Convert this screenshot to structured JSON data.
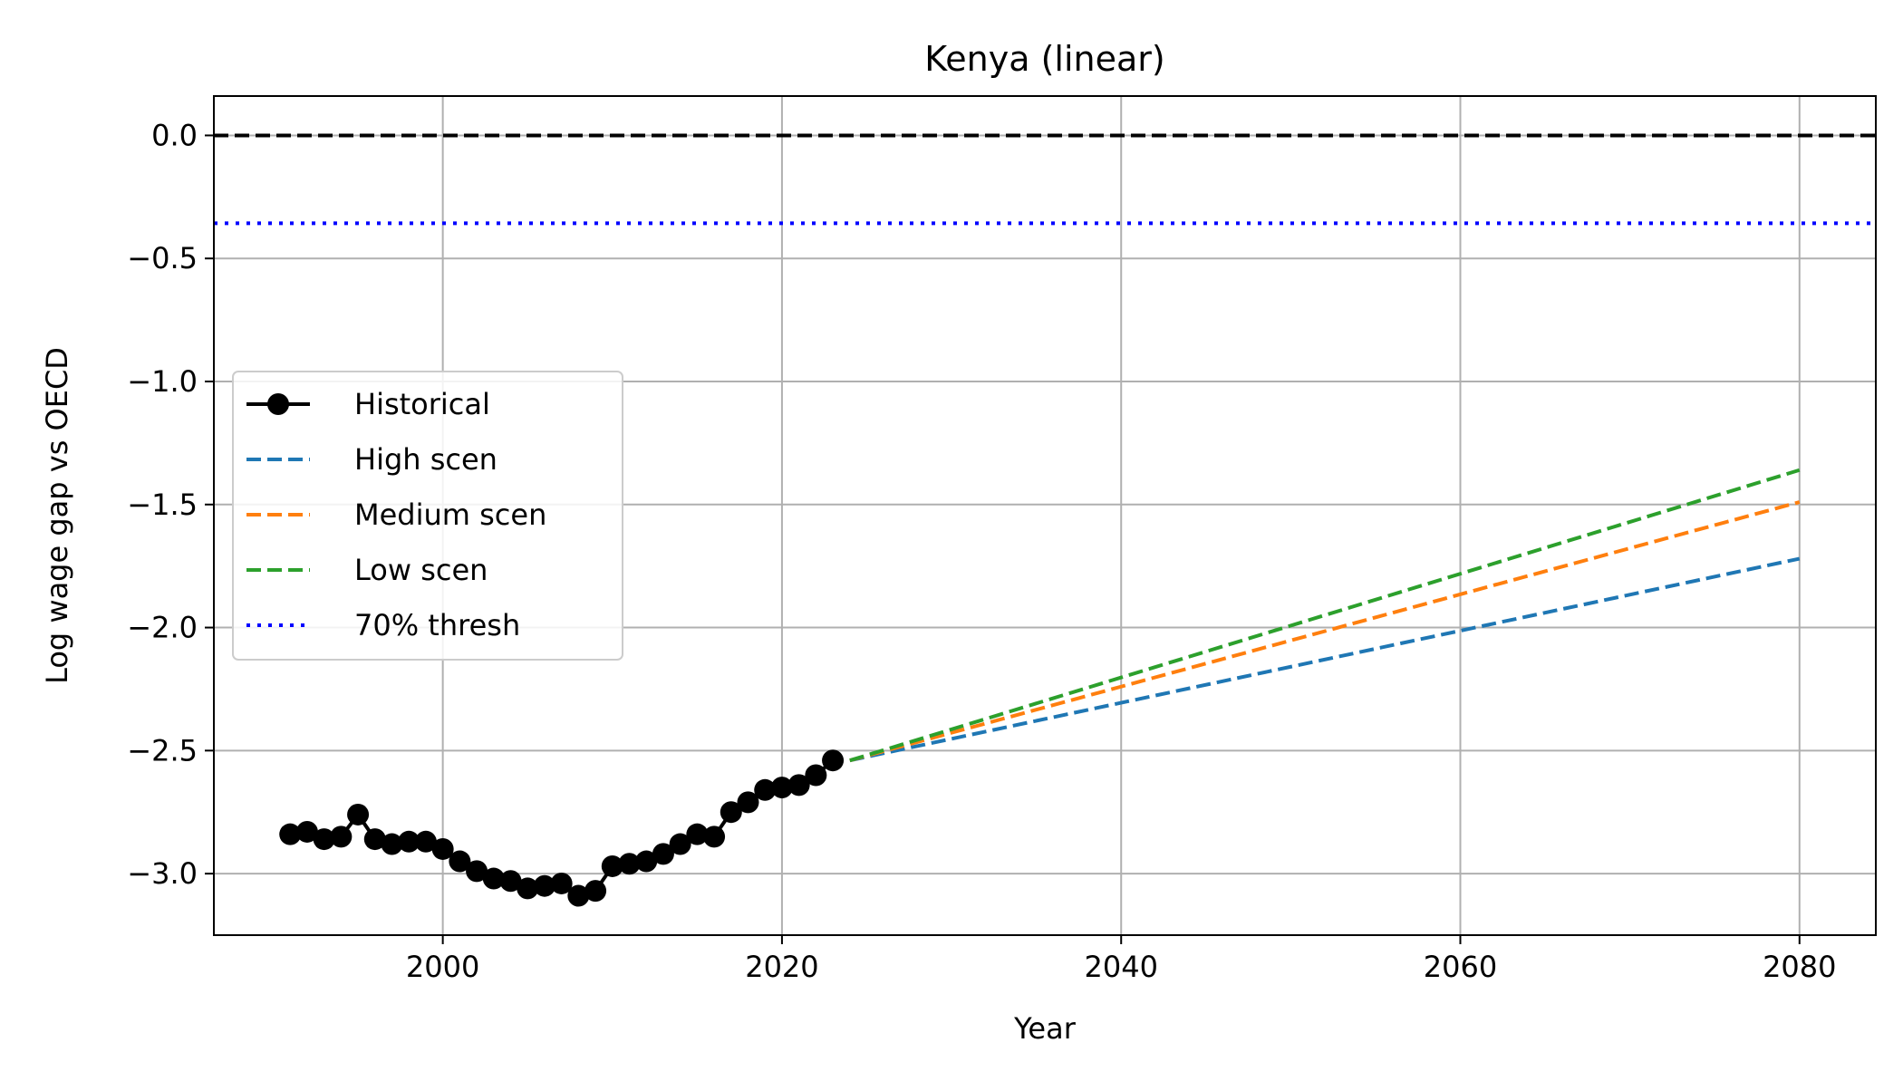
{
  "chart_data": {
    "type": "line",
    "title": "Kenya (linear)",
    "xlabel": "Year",
    "ylabel": "Log wage gap vs OECD",
    "xlim": [
      1986.5,
      2084.5
    ],
    "ylim": [
      -3.25,
      0.16
    ],
    "xticks": [
      2000,
      2020,
      2040,
      2060,
      2080
    ],
    "yticks": [
      0.0,
      -0.5,
      -1.0,
      -1.5,
      -2.0,
      -2.5,
      -3.0
    ],
    "ytick_labels": [
      "0.0",
      "−0.5",
      "−1.0",
      "−1.5",
      "−2.0",
      "−2.5",
      "−3.0"
    ],
    "grid": true,
    "legend_position": "center-left",
    "reference_lines": [
      {
        "y": 0.0,
        "color": "#000000",
        "style": "dashed"
      },
      {
        "y": -0.357,
        "color": "#0000ff",
        "style": "dotted",
        "name": "70% thresh"
      }
    ],
    "series": [
      {
        "name": "Historical",
        "color": "#000000",
        "style": "solid-marker",
        "x": [
          1991,
          1992,
          1993,
          1994,
          1995,
          1996,
          1997,
          1998,
          1999,
          2000,
          2001,
          2002,
          2003,
          2004,
          2005,
          2006,
          2007,
          2008,
          2009,
          2010,
          2011,
          2012,
          2013,
          2014,
          2015,
          2016,
          2017,
          2018,
          2019,
          2020,
          2021,
          2022,
          2023
        ],
        "y": [
          -2.84,
          -2.83,
          -2.86,
          -2.85,
          -2.76,
          -2.86,
          -2.88,
          -2.87,
          -2.87,
          -2.9,
          -2.95,
          -2.99,
          -3.02,
          -3.03,
          -3.06,
          -3.05,
          -3.04,
          -3.09,
          -3.07,
          -2.97,
          -2.96,
          -2.95,
          -2.92,
          -2.88,
          -2.84,
          -2.85,
          -2.75,
          -2.71,
          -2.66,
          -2.65,
          -2.64,
          -2.6,
          -2.54
        ]
      },
      {
        "name": "High scen",
        "color": "#1f77b4",
        "style": "dashed",
        "x": [
          2024,
          2080
        ],
        "y": [
          -2.54,
          -1.72
        ]
      },
      {
        "name": "Medium scen",
        "color": "#ff7f0e",
        "style": "dashed",
        "x": [
          2024,
          2080
        ],
        "y": [
          -2.54,
          -1.49
        ]
      },
      {
        "name": "Low scen",
        "color": "#2ca02c",
        "style": "dashed",
        "x": [
          2024,
          2080
        ],
        "y": [
          -2.54,
          -1.36
        ]
      }
    ],
    "legend_entries": [
      "Historical",
      "High scen",
      "Medium scen",
      "Low scen",
      "70% thresh"
    ]
  }
}
